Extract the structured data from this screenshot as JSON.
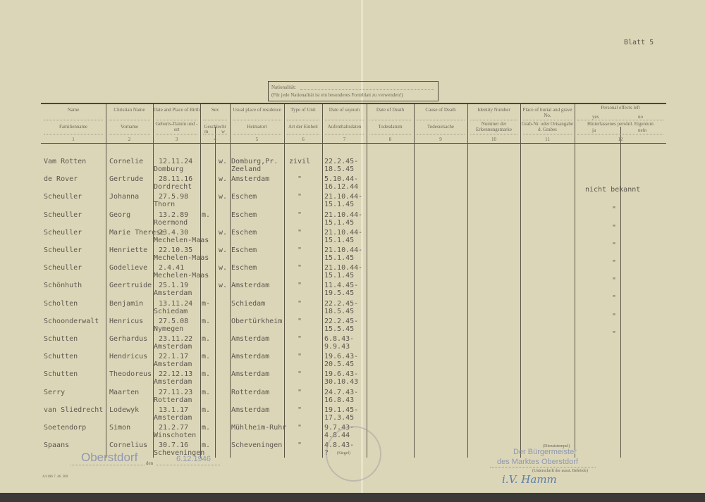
{
  "sheet_label": "Blatt 5",
  "nationality_box": {
    "label": "Nationalität:",
    "note": "(Für jede Nationalität ist ein besonderes Formblatt zu verwenden!)"
  },
  "columns": [
    {
      "en": "Name",
      "de": "Familienname",
      "num": "1"
    },
    {
      "en": "Christian Name",
      "de": "Vorname",
      "num": "2"
    },
    {
      "en": "Date and Place of Birth",
      "de": "Geburts-Datum und -ort",
      "num": "3"
    },
    {
      "en": "Sex",
      "de": "Geschlecht",
      "num": "4",
      "sub": [
        "m",
        "w"
      ]
    },
    {
      "en": "Usual place of residence",
      "de": "Heimatort",
      "num": "5"
    },
    {
      "en": "Type of Unit",
      "de": "Art der Einheit",
      "num": "6"
    },
    {
      "en": "Date of sojourn",
      "de": "Aufenthaltsdaten",
      "num": "7"
    },
    {
      "en": "Date of Death",
      "de": "Todesdatum",
      "num": "8"
    },
    {
      "en": "Cause of Death",
      "de": "Todesursache",
      "num": "9"
    },
    {
      "en": "Identity Number",
      "de": "Nummer der Erkennungsmarke",
      "num": "10"
    },
    {
      "en": "Place of burial and grave No.",
      "de": "Grab-Nr. oder Ortsangabe d. Grabes",
      "num": "11"
    },
    {
      "en": "Personal effects left",
      "en_sub": [
        "yes",
        "no"
      ],
      "de": "Hinterlassenes persönl. Eigentum",
      "de_sub": [
        "ja",
        "nein"
      ],
      "num": "12"
    }
  ],
  "rows": [
    {
      "name": "Vam Rotten",
      "first": "Cornelie",
      "birth_date": "12.11.24",
      "birth_place": "Domburg",
      "sex": "w.",
      "residence": "Domburg,Pr. Zeeland",
      "unit": "zivil",
      "sojourn_from": "22.2.45-",
      "sojourn_to": "18.5.45",
      "effects": ""
    },
    {
      "name": "de Rover",
      "first": "Gertrude",
      "birth_date": "28.11.16",
      "birth_place": "Dordrecht",
      "sex": "w.",
      "residence": "Amsterdam",
      "unit": "\"",
      "sojourn_from": "5.10.44-",
      "sojourn_to": "16.12.44",
      "effects": "nicht bekannt"
    },
    {
      "name": "Scheuller",
      "first": "Johanna",
      "birth_date": "27.5.98",
      "birth_place": "Thorn",
      "sex": "w.",
      "residence": "Eschem",
      "unit": "\"",
      "sojourn_from": "21.10.44-",
      "sojourn_to": "15.1.45",
      "effects": "\""
    },
    {
      "name": "Scheuller",
      "first": "Georg",
      "birth_date": "13.2.89",
      "birth_place": "Roermond",
      "sex": "m.",
      "residence": "Eschem",
      "unit": "\"",
      "sojourn_from": "21.10.44-",
      "sojourn_to": "15.1.45",
      "effects": "\""
    },
    {
      "name": "Scheuller",
      "first": "Marie Therese",
      "birth_date": "23.4.30",
      "birth_place": "Mechelen-Maas",
      "sex": "w.",
      "residence": "Eschem",
      "unit": "\"",
      "sojourn_from": "21.10.44-",
      "sojourn_to": "15.1.45",
      "effects": "\""
    },
    {
      "name": "Scheuller",
      "first": "Henriette",
      "birth_date": "22.10.35",
      "birth_place": "Mechelen-Maas",
      "sex": "w.",
      "residence": "Eschem",
      "unit": "\"",
      "sojourn_from": "21.10.44-",
      "sojourn_to": "15.1.45",
      "effects": "\""
    },
    {
      "name": "Scheuller",
      "first": "Godelieve",
      "birth_date": "2.4.41",
      "birth_place": "Mechelen-Maas",
      "sex": "w.",
      "residence": "Eschem",
      "unit": "\"",
      "sojourn_from": "21.10.44-",
      "sojourn_to": "15.1.45",
      "effects": "\""
    },
    {
      "name": "Schönhuth",
      "first": "Geertruide",
      "birth_date": "25.1.19",
      "birth_place": "Amsterdam",
      "sex": "w.",
      "residence": "Amsterdam",
      "unit": "\"",
      "sojourn_from": "11.4.45-",
      "sojourn_to": "19.5.45",
      "effects": "\""
    },
    {
      "name": "Scholten",
      "first": "Benjamin",
      "birth_date": "13.11.24",
      "birth_place": "Schiedam",
      "sex": "m-",
      "residence": "Schiedam",
      "unit": "\"",
      "sojourn_from": "22.2.45-",
      "sojourn_to": "18.5.45",
      "effects": "\""
    },
    {
      "name": "Schoonderwalt",
      "first": "Henricus",
      "birth_date": "27.5.08",
      "birth_place": "Nymegen",
      "sex": "m.",
      "residence": "Obertürkheim",
      "unit": "\"",
      "sojourn_from": "22.2.45-",
      "sojourn_to": "15.5.45",
      "effects": "\""
    },
    {
      "name": "Schutten",
      "first": "Gerhardus",
      "birth_date": "23.11.22",
      "birth_place": "Amsterdam",
      "sex": "m.",
      "residence": "Amsterdam",
      "unit": "\"",
      "sojourn_from": "6.8.43-",
      "sojourn_to": "9.9.43",
      "effects": ""
    },
    {
      "name": "Schutten",
      "first": "Hendricus",
      "birth_date": "22.1.17",
      "birth_place": "Amsterdam",
      "sex": "m.",
      "residence": "Amsterdam",
      "unit": "\"",
      "sojourn_from": "19.6.43-",
      "sojourn_to": "20.5.45",
      "effects": ""
    },
    {
      "name": "Schutten",
      "first": "Theodoreus",
      "birth_date": "22.12.13",
      "birth_place": "Amsterdam",
      "sex": "m.",
      "residence": "Amsterdam",
      "unit": "\"",
      "sojourn_from": "19.6.43-",
      "sojourn_to": "30.10.43",
      "effects": ""
    },
    {
      "name": "Serry",
      "first": "Maarten",
      "birth_date": "27.11.23",
      "birth_place": "Rotterdam",
      "sex": "m.",
      "residence": "Rotterdam",
      "unit": "\"",
      "sojourn_from": "24.7.43-",
      "sojourn_to": "16.8.43",
      "effects": ""
    },
    {
      "name": "van Sliedrecht",
      "first": "Lodewyk",
      "birth_date": "13.1.17",
      "birth_place": "Amsterdam",
      "sex": "m.",
      "residence": "Amsterdam",
      "unit": "\"",
      "sojourn_from": "19.1.45-",
      "sojourn_to": "17.3.45",
      "effects": ""
    },
    {
      "name": "Soetendorp",
      "first": "Simon",
      "birth_date": "21.2.77",
      "birth_place": "Winschoten",
      "sex": "m.",
      "residence": "Mühlheim-Ruhr",
      "unit": "\"",
      "sojourn_from": "9.7.43-",
      "sojourn_to": "4.8.44",
      "effects": ""
    },
    {
      "name": "Spaans",
      "first": "Cornelius",
      "birth_date": "30.7.16",
      "birth_place": "Scheveningen",
      "sex": "m.",
      "residence": "Scheveningen",
      "unit": "\"",
      "sojourn_from": "4.8.43-",
      "sojourn_to": "?",
      "effects": ""
    }
  ],
  "footer": {
    "place_stamp": "Oberstdorf",
    "den_label": "den",
    "date_stamp": "6.12.1946",
    "seal_label": "(Siegel)",
    "official_stamp_label": "(Dienststempel)",
    "authority_line1": "Der Bürgermeister",
    "authority_line2": "des Marktes Oberstdorf",
    "signature_caption": "(Unterschrift der ausst. Behörde)",
    "signature": "i.V. Hamm",
    "form_number": "A/1186 7. 46. 300"
  },
  "colors": {
    "paper": "#dcd6b8",
    "ink": "#5b574e",
    "stamp": "#8e98b0",
    "signature": "#5a80a8"
  }
}
